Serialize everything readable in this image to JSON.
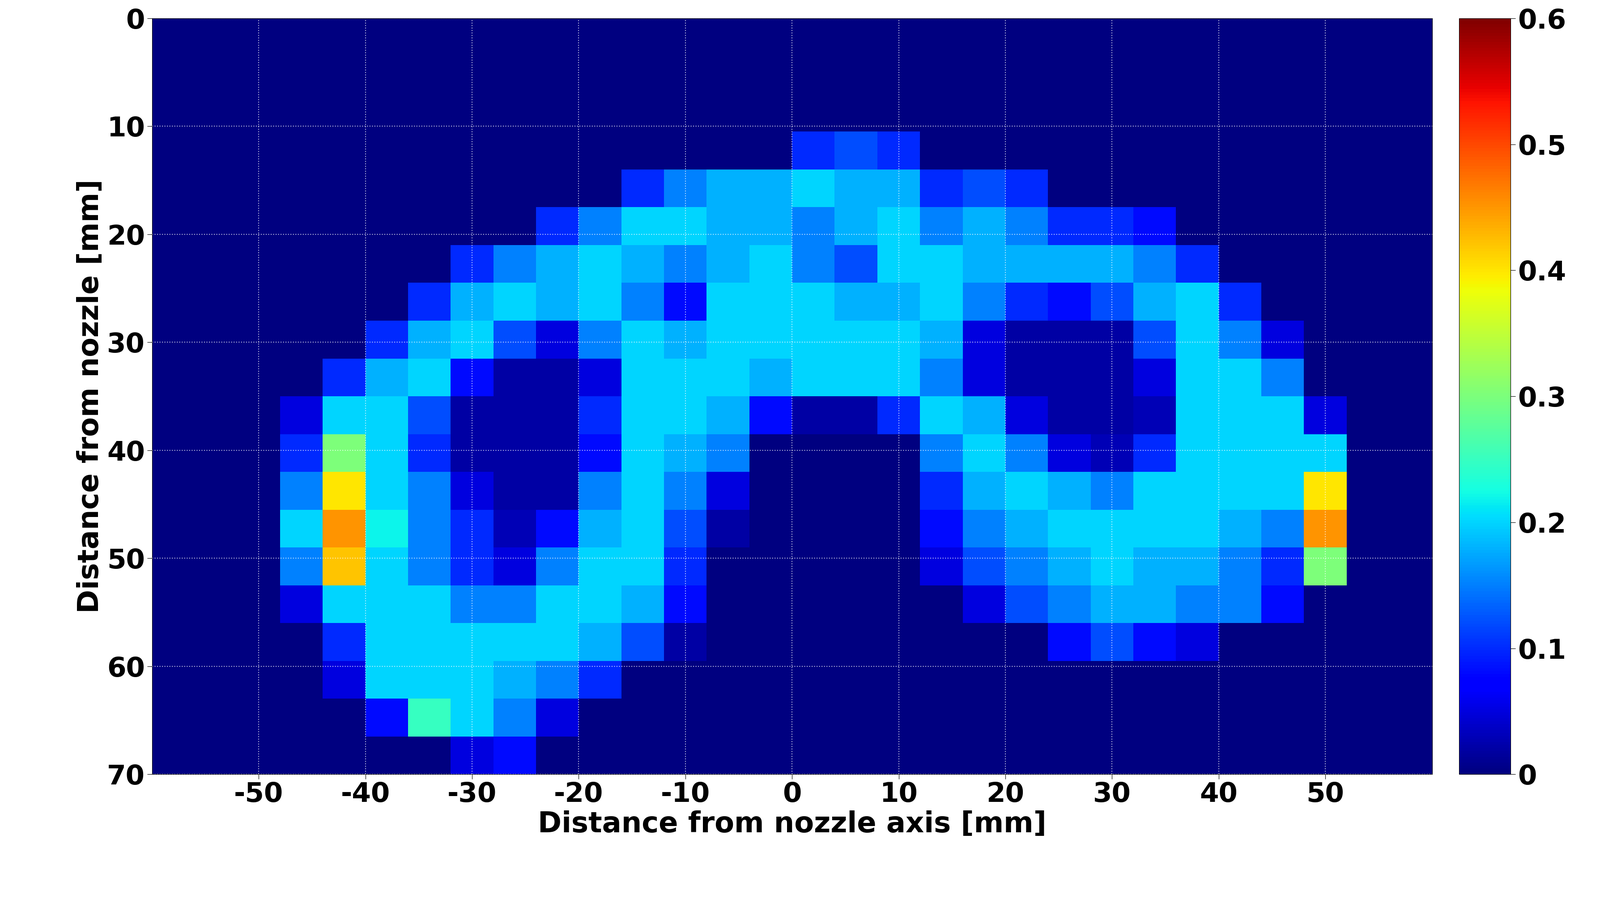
{
  "chart_data": {
    "type": "heatmap",
    "x_label": "Distance from nozzle axis [mm]",
    "y_label": "Distance from nozzle [mm]",
    "xlim": [
      -60,
      60
    ],
    "xticks": [
      -50,
      -40,
      -30,
      -20,
      -10,
      0,
      10,
      20,
      30,
      40,
      50
    ],
    "ylim": [
      70,
      0
    ],
    "yticks": [
      0,
      10,
      20,
      30,
      40,
      50,
      60,
      70
    ],
    "grid": true,
    "x_edges": [
      -60,
      -56,
      -52,
      -48,
      -44,
      -40,
      -36,
      -32,
      -28,
      -24,
      -20,
      -16,
      -12,
      -8,
      -4,
      0,
      4,
      8,
      12,
      16,
      20,
      24,
      28,
      32,
      36,
      40,
      44,
      48,
      52,
      56,
      60
    ],
    "y_edges": [
      0,
      3.5,
      7,
      10.5,
      14,
      17.5,
      21,
      24.5,
      28,
      31.5,
      35,
      38.5,
      42,
      45.5,
      49,
      52.5,
      56,
      59.5,
      63,
      66.5,
      70
    ],
    "colorbar_range": [
      0,
      0.6
    ],
    "colorbar_ticks": [
      0,
      0.1,
      0.2,
      0.3,
      0.4,
      0.5,
      0.6
    ],
    "cells": [
      [
        0,
        0,
        0,
        0,
        0,
        0,
        0,
        0,
        0,
        0,
        0,
        0,
        0,
        0,
        0,
        0,
        0,
        0,
        0,
        0,
        0,
        0,
        0,
        0,
        0,
        0,
        0,
        0,
        0,
        0
      ],
      [
        0,
        0,
        0,
        0,
        0,
        0,
        0,
        0,
        0,
        0,
        0,
        0,
        0,
        0,
        0,
        0,
        0,
        0,
        0,
        0,
        0,
        0,
        0,
        0,
        0,
        0,
        0,
        0,
        0,
        0
      ],
      [
        0,
        0,
        0,
        0,
        0,
        0,
        0,
        0,
        0,
        0,
        0,
        0,
        0,
        0,
        0,
        0,
        0,
        0,
        0,
        0,
        0,
        0,
        0,
        0,
        0,
        0,
        0,
        0,
        0,
        0
      ],
      [
        0,
        0,
        0,
        0,
        0,
        0,
        0,
        0,
        0,
        0,
        0,
        0,
        0,
        0,
        0,
        0.1,
        0.12,
        0.1,
        0,
        0,
        0,
        0,
        0,
        0,
        0,
        0,
        0,
        0,
        0,
        0
      ],
      [
        0,
        0,
        0,
        0,
        0,
        0,
        0,
        0,
        0,
        0,
        0,
        0.1,
        0.15,
        0.18,
        0.18,
        0.2,
        0.18,
        0.18,
        0.1,
        0.12,
        0.1,
        0,
        0,
        0,
        0,
        0,
        0,
        0,
        0,
        0
      ],
      [
        0,
        0,
        0,
        0,
        0,
        0,
        0,
        0,
        0,
        0.1,
        0.15,
        0.2,
        0.2,
        0.18,
        0.18,
        0.15,
        0.18,
        0.2,
        0.15,
        0.18,
        0.15,
        0.1,
        0.1,
        0.08,
        0,
        0,
        0,
        0,
        0,
        0
      ],
      [
        0,
        0,
        0,
        0,
        0,
        0,
        0,
        0.1,
        0.15,
        0.18,
        0.2,
        0.18,
        0.15,
        0.18,
        0.2,
        0.15,
        0.12,
        0.2,
        0.2,
        0.18,
        0.18,
        0.18,
        0.18,
        0.15,
        0.1,
        0,
        0,
        0,
        0,
        0
      ],
      [
        0,
        0,
        0,
        0,
        0,
        0,
        0.1,
        0.18,
        0.2,
        0.18,
        0.2,
        0.15,
        0.08,
        0.2,
        0.2,
        0.2,
        0.18,
        0.18,
        0.2,
        0.15,
        0.1,
        0.08,
        0.12,
        0.18,
        0.2,
        0.1,
        0,
        0,
        0,
        0
      ],
      [
        0,
        0,
        0,
        0,
        0,
        0.1,
        0.18,
        0.2,
        0.12,
        0.05,
        0.15,
        0.2,
        0.18,
        0.2,
        0.2,
        0.2,
        0.2,
        0.2,
        0.18,
        0.05,
        0.02,
        0.02,
        0.02,
        0.12,
        0.2,
        0.15,
        0.05,
        0,
        0,
        0
      ],
      [
        0,
        0,
        0,
        0,
        0.1,
        0.18,
        0.2,
        0.08,
        0.02,
        0.02,
        0.05,
        0.2,
        0.2,
        0.2,
        0.18,
        0.2,
        0.2,
        0.2,
        0.15,
        0.05,
        0.02,
        0.02,
        0.02,
        0.05,
        0.2,
        0.2,
        0.15,
        0,
        0,
        0
      ],
      [
        0,
        0,
        0,
        0.05,
        0.2,
        0.2,
        0.12,
        0.02,
        0.02,
        0.02,
        0.1,
        0.2,
        0.2,
        0.18,
        0.08,
        0.02,
        0.02,
        0.1,
        0.2,
        0.18,
        0.05,
        0.02,
        0.02,
        0.03,
        0.2,
        0.2,
        0.2,
        0.05,
        0,
        0
      ],
      [
        0,
        0,
        0,
        0.1,
        0.3,
        0.2,
        0.1,
        0.02,
        0.02,
        0.02,
        0.08,
        0.2,
        0.18,
        0.15,
        0,
        0,
        0,
        0,
        0.15,
        0.2,
        0.15,
        0.05,
        0.03,
        0.1,
        0.2,
        0.2,
        0.2,
        0.2,
        0,
        0
      ],
      [
        0,
        0,
        0,
        0.15,
        0.4,
        0.2,
        0.15,
        0.05,
        0.02,
        0.02,
        0.15,
        0.2,
        0.15,
        0.05,
        0,
        0,
        0,
        0,
        0.1,
        0.18,
        0.2,
        0.18,
        0.15,
        0.2,
        0.2,
        0.2,
        0.2,
        0.4,
        0,
        0
      ],
      [
        0,
        0,
        0,
        0.2,
        0.45,
        0.22,
        0.15,
        0.1,
        0.03,
        0.08,
        0.18,
        0.2,
        0.12,
        0.02,
        0,
        0,
        0,
        0,
        0.08,
        0.15,
        0.18,
        0.2,
        0.2,
        0.2,
        0.2,
        0.18,
        0.15,
        0.45,
        0,
        0
      ],
      [
        0,
        0,
        0,
        0.15,
        0.42,
        0.2,
        0.15,
        0.1,
        0.05,
        0.15,
        0.2,
        0.2,
        0.1,
        0,
        0,
        0,
        0,
        0,
        0.05,
        0.12,
        0.15,
        0.18,
        0.2,
        0.18,
        0.18,
        0.15,
        0.1,
        0.3,
        0,
        0
      ],
      [
        0,
        0,
        0,
        0.05,
        0.2,
        0.2,
        0.2,
        0.15,
        0.15,
        0.2,
        0.2,
        0.18,
        0.08,
        0,
        0,
        0,
        0,
        0,
        0,
        0.05,
        0.12,
        0.15,
        0.18,
        0.18,
        0.15,
        0.15,
        0.08,
        0,
        0,
        0
      ],
      [
        0,
        0,
        0,
        0,
        0.1,
        0.2,
        0.2,
        0.2,
        0.2,
        0.2,
        0.18,
        0.12,
        0.02,
        0,
        0,
        0,
        0,
        0,
        0,
        0,
        0,
        0.08,
        0.12,
        0.08,
        0.05,
        0,
        0,
        0,
        0,
        0
      ],
      [
        0,
        0,
        0,
        0,
        0.05,
        0.2,
        0.2,
        0.2,
        0.18,
        0.15,
        0.1,
        0,
        0,
        0,
        0,
        0,
        0,
        0,
        0,
        0,
        0,
        0,
        0,
        0,
        0,
        0,
        0,
        0,
        0,
        0
      ],
      [
        0,
        0,
        0,
        0,
        0,
        0.08,
        0.25,
        0.2,
        0.15,
        0.05,
        0,
        0,
        0,
        0,
        0,
        0,
        0,
        0,
        0,
        0,
        0,
        0,
        0,
        0,
        0,
        0,
        0,
        0,
        0,
        0
      ],
      [
        0,
        0,
        0,
        0,
        0,
        0,
        0,
        0.05,
        0.08,
        0,
        0,
        0,
        0,
        0,
        0,
        0,
        0,
        0,
        0,
        0,
        0,
        0,
        0,
        0,
        0,
        0,
        0,
        0,
        0,
        0
      ]
    ]
  }
}
